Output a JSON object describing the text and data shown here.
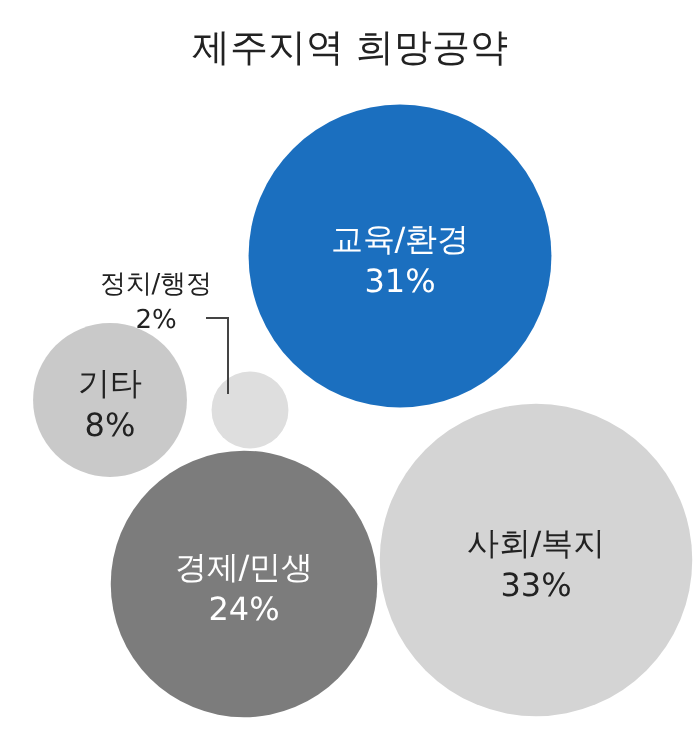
{
  "chart_data": {
    "type": "other",
    "title": "제주지역 희망공약",
    "categories": [
      "교육/환경",
      "사회/복지",
      "경제/민생",
      "기타",
      "정치/행정"
    ],
    "values": [
      31,
      33,
      24,
      8,
      2
    ],
    "value_labels": [
      "31%",
      "33%",
      "24%",
      "8%",
      "2%"
    ],
    "colors": [
      "#1b6fbf",
      "#d4d4d4",
      "#7c7c7c",
      "#c9c9c9",
      "#dedede"
    ]
  }
}
